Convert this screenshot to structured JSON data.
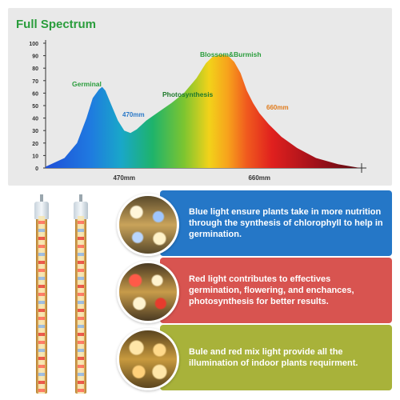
{
  "chart_data": {
    "type": "area",
    "title": "Full Spectrum",
    "ylim": [
      0,
      100
    ],
    "y_ticks": [
      0,
      10,
      20,
      30,
      40,
      50,
      60,
      70,
      80,
      90,
      100
    ],
    "x_tick_labels": [
      "470mm",
      "660mm"
    ],
    "series": [
      {
        "values": [
          [
            0,
            1
          ],
          [
            6,
            8
          ],
          [
            10,
            20
          ],
          [
            13,
            40
          ],
          [
            15,
            56
          ],
          [
            17,
            63
          ],
          [
            18,
            65
          ],
          [
            19,
            62
          ],
          [
            21,
            50
          ],
          [
            23,
            38
          ],
          [
            25,
            30
          ],
          [
            27,
            28
          ],
          [
            29,
            31
          ],
          [
            32,
            38
          ],
          [
            36,
            45
          ],
          [
            40,
            52
          ],
          [
            44,
            60
          ],
          [
            48,
            72
          ],
          [
            51,
            84
          ],
          [
            53,
            89
          ],
          [
            56,
            91
          ],
          [
            58,
            90
          ],
          [
            60,
            85
          ],
          [
            62,
            76
          ],
          [
            64,
            62
          ],
          [
            66,
            52
          ],
          [
            68,
            44
          ],
          [
            71,
            35
          ],
          [
            75,
            25
          ],
          [
            80,
            16
          ],
          [
            86,
            8
          ],
          [
            93,
            3
          ],
          [
            100,
            0
          ]
        ]
      }
    ],
    "annotations": [
      {
        "text": "Germinal",
        "color": "#2a9d3c"
      },
      {
        "text": "470mm",
        "color": "#2a78c7"
      },
      {
        "text": "Photosynthesis",
        "color": "#1f7a2c"
      },
      {
        "text": "Blossom&Burmish",
        "color": "#2a9d3c"
      },
      {
        "text": "660mm",
        "color": "#e07a1a"
      }
    ]
  },
  "info": {
    "blue": "Blue light ensure plants take in more nutrition through the synthesis of chlorophyll to help in germination.",
    "red": "Red light contributes to effectives germination, flowering, and enchances, photosynthesis for better results.",
    "olive": "Bule and red mix light  provide all the illumination of indoor plants requirment."
  },
  "colors": {
    "blue_panel": "#2577c7",
    "red_panel": "#d85450",
    "olive_panel": "#a8b23a",
    "title_green": "#2a9d3c"
  }
}
